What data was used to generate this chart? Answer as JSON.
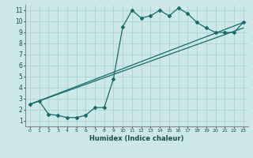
{
  "xlabel": "Humidex (Indice chaleur)",
  "bg_color": "#cce8e8",
  "grid_color": "#aacece",
  "line_color": "#1a6b6b",
  "xlim": [
    -0.5,
    23.5
  ],
  "ylim": [
    0.5,
    11.5
  ],
  "xticks": [
    0,
    1,
    2,
    3,
    4,
    5,
    6,
    7,
    8,
    9,
    10,
    11,
    12,
    13,
    14,
    15,
    16,
    17,
    18,
    19,
    20,
    21,
    22,
    23
  ],
  "yticks": [
    1,
    2,
    3,
    4,
    5,
    6,
    7,
    8,
    9,
    10,
    11
  ],
  "line1_x": [
    0,
    1,
    2,
    3,
    4,
    5,
    6,
    7,
    8,
    9,
    10,
    11,
    12,
    13,
    14,
    15,
    16,
    17,
    18,
    19,
    20,
    21,
    22,
    23
  ],
  "line1_y": [
    2.5,
    2.8,
    1.6,
    1.5,
    1.3,
    1.3,
    1.5,
    2.2,
    2.2,
    4.8,
    9.5,
    11.0,
    10.3,
    10.5,
    11.0,
    10.5,
    11.2,
    10.7,
    9.9,
    9.4,
    9.0,
    9.0,
    9.0,
    9.9
  ],
  "line2_x": [
    0,
    23
  ],
  "line2_y": [
    2.5,
    9.9
  ],
  "line3_x": [
    0,
    23
  ],
  "line3_y": [
    2.5,
    9.4
  ]
}
